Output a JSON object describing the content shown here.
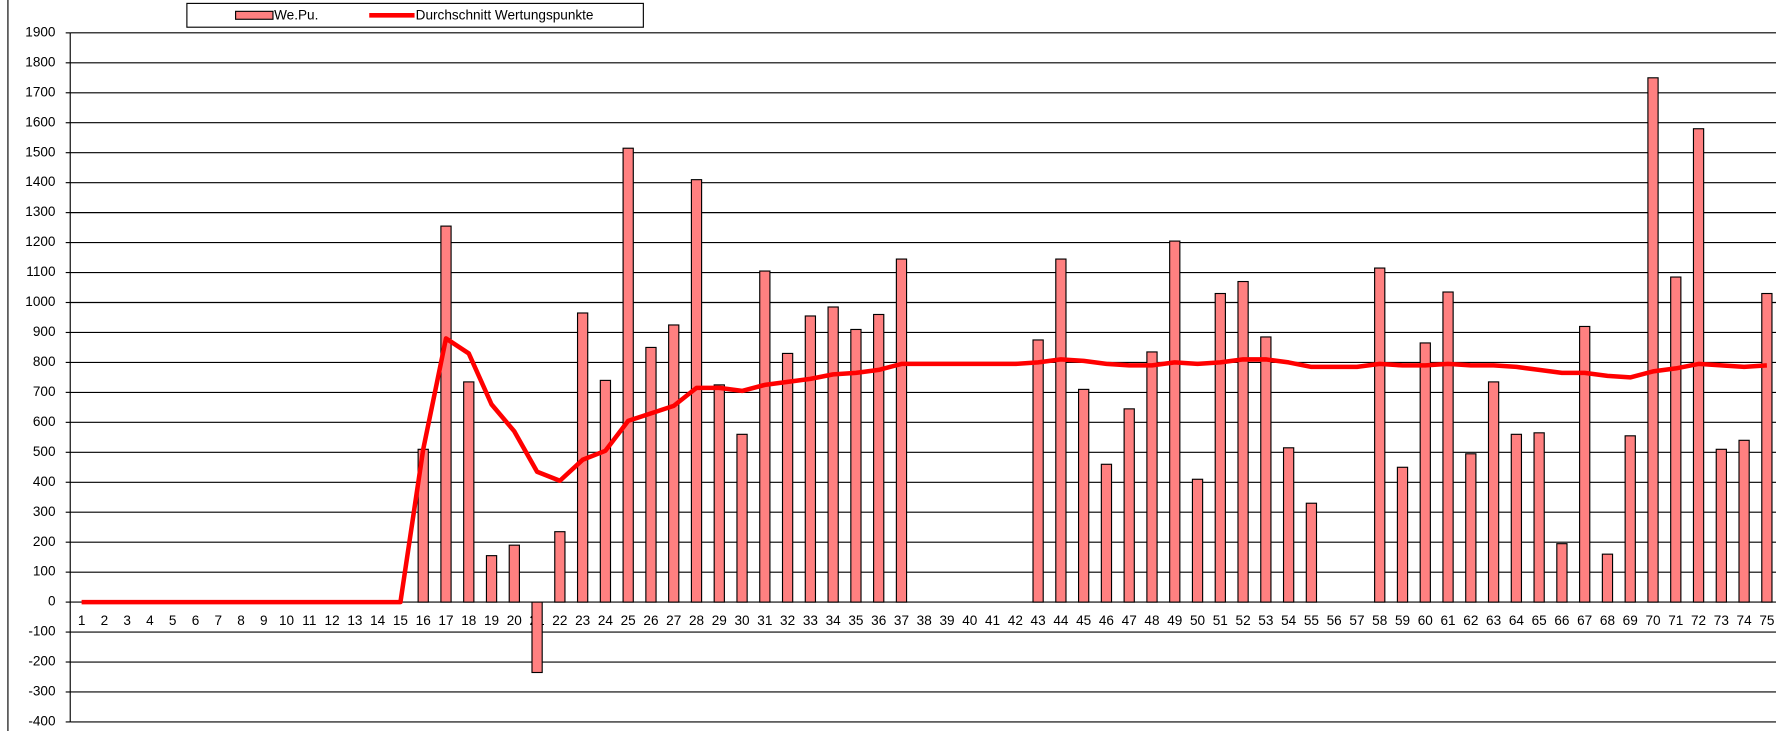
{
  "chart_data": {
    "type": "bar",
    "categories": [
      "1",
      "2",
      "3",
      "4",
      "5",
      "6",
      "7",
      "8",
      "9",
      "10",
      "11",
      "12",
      "13",
      "14",
      "15",
      "16",
      "17",
      "18",
      "19",
      "20",
      "21",
      "22",
      "23",
      "24",
      "25",
      "26",
      "27",
      "28",
      "29",
      "30",
      "31",
      "32",
      "33",
      "34",
      "35",
      "36",
      "37",
      "38",
      "39",
      "40",
      "41",
      "42",
      "43",
      "44",
      "45",
      "46",
      "47",
      "48",
      "49",
      "50",
      "51",
      "52",
      "53",
      "54",
      "55",
      "56",
      "57",
      "58",
      "59",
      "60",
      "61",
      "62",
      "63",
      "64",
      "65",
      "66",
      "67",
      "68",
      "69",
      "70",
      "71",
      "72",
      "73",
      "74",
      "75"
    ],
    "series": [
      {
        "name": "We.Pu.",
        "type": "bar",
        "color": "#ff8080",
        "values": [
          0,
          0,
          0,
          0,
          0,
          0,
          0,
          0,
          0,
          0,
          0,
          0,
          0,
          0,
          0,
          510,
          1255,
          735,
          155,
          190,
          -235,
          235,
          965,
          740,
          1515,
          850,
          925,
          1410,
          725,
          560,
          1105,
          830,
          955,
          985,
          910,
          960,
          1145,
          null,
          null,
          null,
          null,
          null,
          875,
          1145,
          710,
          460,
          645,
          835,
          1205,
          410,
          1030,
          1070,
          885,
          515,
          330,
          null,
          null,
          1115,
          450,
          865,
          1035,
          495,
          735,
          560,
          565,
          195,
          920,
          160,
          555,
          1750,
          1085,
          1580,
          510,
          540,
          1030
        ]
      },
      {
        "name": "Durchschnitt Wertungspunkte",
        "type": "line",
        "color": "#ff0000",
        "values": [
          0,
          0,
          0,
          0,
          0,
          0,
          0,
          0,
          0,
          0,
          0,
          0,
          0,
          0,
          0,
          510,
          880,
          830,
          660,
          570,
          435,
          405,
          475,
          505,
          605,
          630,
          655,
          715,
          715,
          705,
          725,
          735,
          745,
          760,
          765,
          775,
          795,
          795,
          795,
          795,
          795,
          795,
          800,
          810,
          805,
          795,
          790,
          790,
          800,
          795,
          800,
          810,
          810,
          800,
          785,
          785,
          785,
          795,
          790,
          790,
          795,
          790,
          790,
          785,
          775,
          765,
          765,
          755,
          750,
          770,
          780,
          795,
          790,
          785,
          790
        ]
      }
    ],
    "ylim": [
      -400,
      1900
    ],
    "yticks": [
      -400,
      -300,
      -200,
      -100,
      0,
      100,
      200,
      300,
      400,
      500,
      600,
      700,
      800,
      900,
      1000,
      1100,
      1200,
      1300,
      1400,
      1500,
      1600,
      1700,
      1800,
      1900
    ],
    "grid": true,
    "legend": "top"
  }
}
